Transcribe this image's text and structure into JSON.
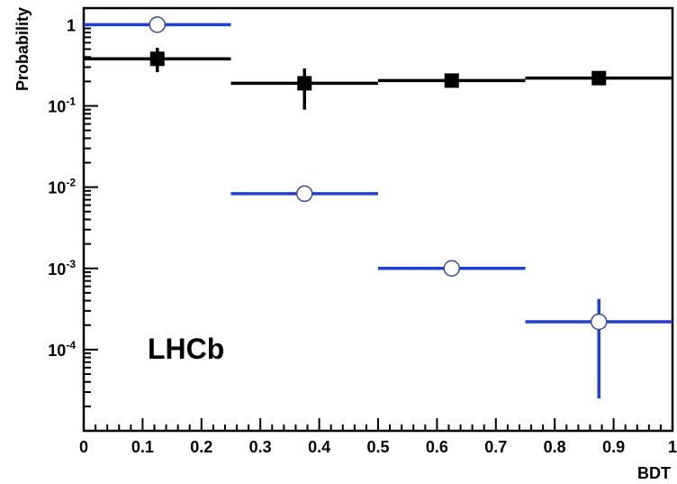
{
  "chart_data": {
    "type": "scatter",
    "xlabel": "BDT",
    "ylabel": "Probability",
    "annotation": "LHCb",
    "xlim": [
      0,
      1
    ],
    "ylim": [
      1e-05,
      1.6
    ],
    "y_scale": "log",
    "grid": false,
    "legend": "none",
    "x_ticks": [
      {
        "value": 0,
        "label": "0"
      },
      {
        "value": 0.1,
        "label": "0.1"
      },
      {
        "value": 0.2,
        "label": "0.2"
      },
      {
        "value": 0.3,
        "label": "0.3"
      },
      {
        "value": 0.4,
        "label": "0.4"
      },
      {
        "value": 0.5,
        "label": "0.5"
      },
      {
        "value": 0.6,
        "label": "0.6"
      },
      {
        "value": 0.7,
        "label": "0.7"
      },
      {
        "value": 0.8,
        "label": "0.8"
      },
      {
        "value": 0.9,
        "label": "0.9"
      },
      {
        "value": 1,
        "label": "1"
      }
    ],
    "y_ticks": [
      {
        "value": 1,
        "base": "1",
        "exp": ""
      },
      {
        "value": 0.1,
        "base": "10",
        "exp": "-1"
      },
      {
        "value": 0.01,
        "base": "10",
        "exp": "-2"
      },
      {
        "value": 0.001,
        "base": "10",
        "exp": "-3"
      },
      {
        "value": 0.0001,
        "base": "10",
        "exp": "-4"
      }
    ],
    "series": [
      {
        "marker": "filled-square",
        "color": "#000000",
        "points": [
          {
            "x": 0.125,
            "x_low": 0.0,
            "x_high": 0.25,
            "y": 0.38,
            "y_low": 0.26,
            "y_high": 0.52
          },
          {
            "x": 0.375,
            "x_low": 0.25,
            "x_high": 0.5,
            "y": 0.19,
            "y_low": 0.09,
            "y_high": 0.29
          },
          {
            "x": 0.625,
            "x_low": 0.5,
            "x_high": 0.75,
            "y": 0.205,
            "y_low": 0.185,
            "y_high": 0.225
          },
          {
            "x": 0.875,
            "x_low": 0.75,
            "x_high": 1.0,
            "y": 0.22,
            "y_low": 0.2,
            "y_high": 0.24
          }
        ]
      },
      {
        "marker": "open-circle",
        "color": "#1f3fd6",
        "points": [
          {
            "x": 0.125,
            "x_low": 0.0,
            "x_high": 0.25,
            "y": 1.0,
            "y_low": 0.99,
            "y_high": 1.01
          },
          {
            "x": 0.375,
            "x_low": 0.25,
            "x_high": 0.5,
            "y": 0.0083,
            "y_low": 0.0081,
            "y_high": 0.0085
          },
          {
            "x": 0.625,
            "x_low": 0.5,
            "x_high": 0.75,
            "y": 0.001,
            "y_low": 0.00087,
            "y_high": 0.00113
          },
          {
            "x": 0.875,
            "x_low": 0.75,
            "x_high": 1.0,
            "y": 0.00022,
            "y_low": 2.5e-05,
            "y_high": 0.00042
          }
        ]
      }
    ]
  }
}
